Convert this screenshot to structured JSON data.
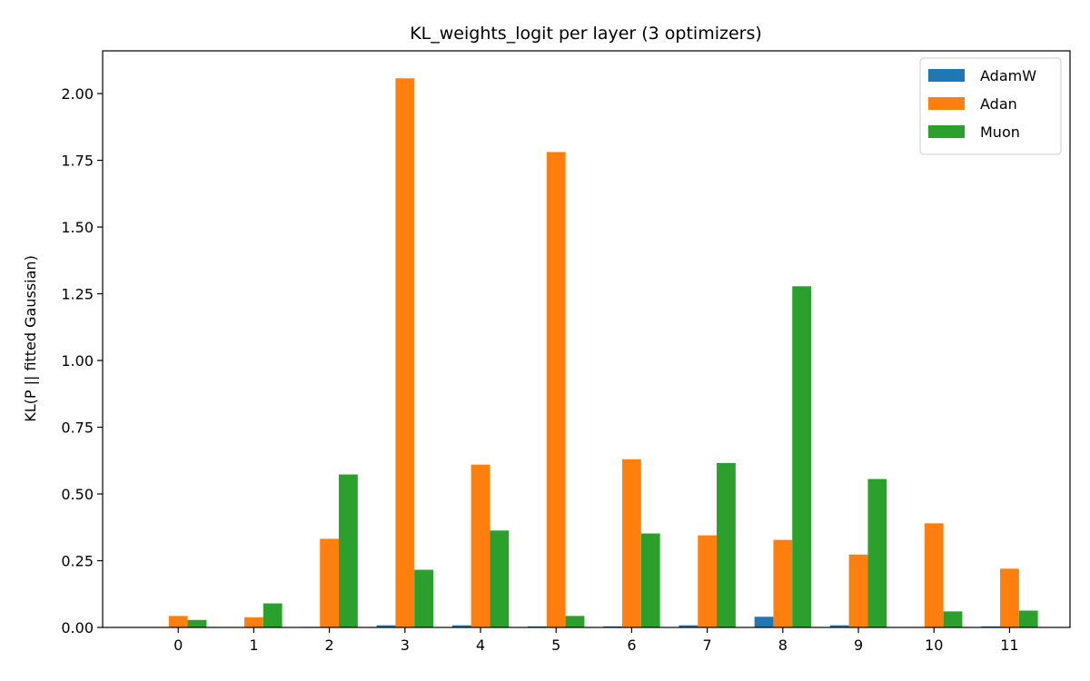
{
  "chart_data": {
    "type": "bar",
    "title": "KL_weights_logit per layer (3 optimizers)",
    "xlabel": "",
    "ylabel": "KL(P || fitted Gaussian)",
    "categories": [
      "0",
      "1",
      "2",
      "3",
      "4",
      "5",
      "6",
      "7",
      "8",
      "9",
      "10",
      "11"
    ],
    "ylim": [
      0,
      2.16
    ],
    "yticks": [
      "0.00",
      "0.25",
      "0.50",
      "0.75",
      "1.00",
      "1.25",
      "1.50",
      "1.75",
      "2.00"
    ],
    "legend_position": "top-right",
    "grid": false,
    "series": [
      {
        "name": "AdamW",
        "color": "#1f77b4",
        "values": [
          0.0,
          0.001,
          0.002,
          0.008,
          0.008,
          0.004,
          0.004,
          0.008,
          0.04,
          0.008,
          0.001,
          0.004
        ]
      },
      {
        "name": "Adan",
        "color": "#ff7f0e",
        "values": [
          0.043,
          0.038,
          0.332,
          2.057,
          0.61,
          1.781,
          0.63,
          0.345,
          0.328,
          0.273,
          0.39,
          0.22
        ]
      },
      {
        "name": "Muon",
        "color": "#2ca02c",
        "values": [
          0.028,
          0.09,
          0.573,
          0.216,
          0.363,
          0.043,
          0.352,
          0.616,
          1.278,
          0.556,
          0.06,
          0.063
        ]
      }
    ]
  }
}
